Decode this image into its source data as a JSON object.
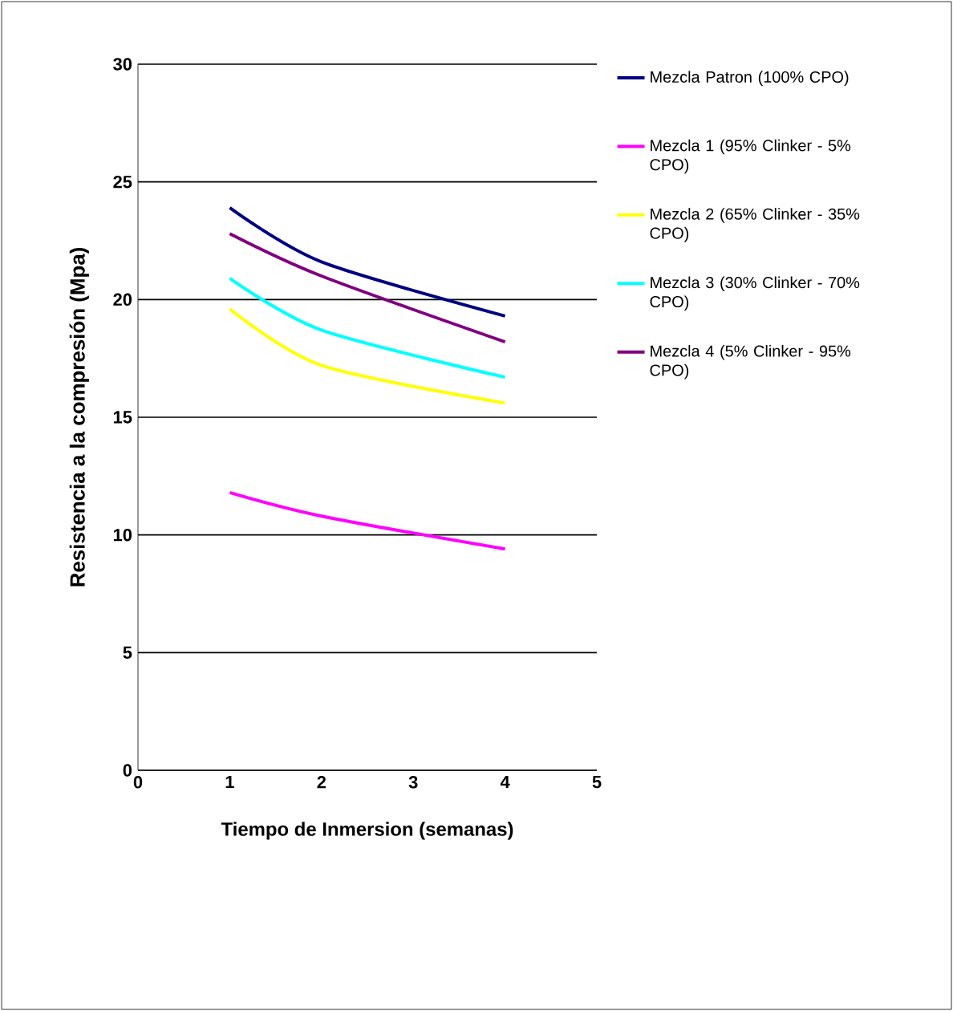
{
  "chart_data": {
    "type": "line",
    "xlabel": "Tiempo de Inmersion (semanas)",
    "ylabel": "Resistencia a la compresión (Mpa)",
    "x": [
      1,
      2,
      4
    ],
    "xlim": [
      0,
      5
    ],
    "xticks": [
      0,
      1,
      2,
      3,
      4,
      5
    ],
    "ylim": [
      0,
      30
    ],
    "yticks": [
      0,
      5,
      10,
      15,
      20,
      25,
      30
    ],
    "grid": "y",
    "legend": "right",
    "marker": "none",
    "line_style": "solid",
    "series": [
      {
        "name": "Mezcla Patron (100% CPO)",
        "color": "#000080",
        "values": [
          23.9,
          21.6,
          19.3
        ]
      },
      {
        "name": "Mezcla 1 (95% Clinker - 5% CPO)",
        "color": "#ff00ff",
        "values": [
          11.8,
          10.8,
          9.4
        ]
      },
      {
        "name": "Mezcla 2 (65% Clinker - 35% CPO)",
        "color": "#ffff00",
        "values": [
          19.6,
          17.2,
          15.6
        ]
      },
      {
        "name": "Mezcla 3 (30% Clinker - 70% CPO)",
        "color": "#00ffff",
        "values": [
          20.9,
          18.7,
          16.7
        ]
      },
      {
        "name": "Mezcla 4 (5% Clinker - 95% CPO)",
        "color": "#800080",
        "values": [
          22.8,
          21.0,
          18.2
        ]
      }
    ]
  }
}
